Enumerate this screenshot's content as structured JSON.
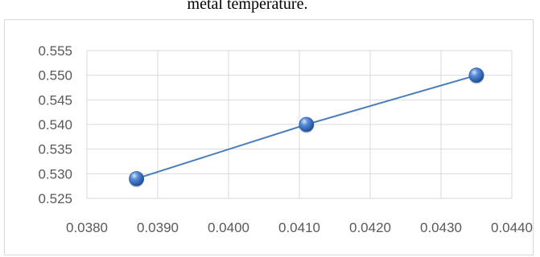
{
  "caption": {
    "fragment": "metal temperature."
  },
  "chart_data": {
    "type": "scatter",
    "title": "",
    "xlabel": "",
    "ylabel": "",
    "x": [
      0.0387,
      0.0411,
      0.0435
    ],
    "y": [
      0.529,
      0.54,
      0.55
    ],
    "xlim": [
      0.038,
      0.044
    ],
    "ylim": [
      0.525,
      0.555
    ],
    "x_ticks": [
      "0.0380",
      "0.0390",
      "0.0400",
      "0.0410",
      "0.0420",
      "0.0430",
      "0.0440"
    ],
    "y_ticks": [
      "0.525",
      "0.530",
      "0.535",
      "0.540",
      "0.545",
      "0.550",
      "0.555"
    ],
    "grid": true,
    "connect_points": true,
    "line_color": "#4a7ebb",
    "marker_color": "#3a6fc4",
    "grid_color": "#d9d9d9"
  }
}
